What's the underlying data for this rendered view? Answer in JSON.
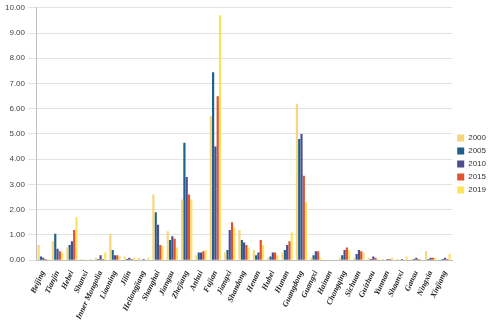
{
  "chart_data": {
    "type": "bar",
    "categories": [
      "Beijing",
      "Tianjin",
      "Hebei",
      "Shanxi",
      "Inner Mongolia",
      "Liaoning",
      "Jilin",
      "Heilongjiang",
      "Shanghai",
      "Jiangsu",
      "Zhejiang",
      "Anhui",
      "Fujian",
      "Jiangxi",
      "Shandong",
      "Henan",
      "Hubei",
      "Hunan",
      "Guangdong",
      "Guangxi",
      "Hainan",
      "Chongqing",
      "Sichuan",
      "Guizhou",
      "Yunnan",
      "Shaanxi",
      "Gansu",
      "Ningxia",
      "Xinjiang"
    ],
    "series": [
      {
        "name": "2000",
        "color": "#f5d67b",
        "values": [
          0.6,
          0.75,
          0.5,
          0.05,
          0.1,
          1.05,
          0.15,
          0.1,
          2.6,
          1.15,
          2.4,
          0.2,
          5.7,
          0.3,
          1.2,
          0.4,
          0.1,
          0.3,
          6.2,
          0.1,
          0.02,
          0.1,
          0.1,
          0.1,
          0.05,
          0.05,
          0.05,
          0.35,
          0.05
        ]
      },
      {
        "name": "2005",
        "color": "#1f5f8b",
        "values": [
          0.15,
          1.05,
          0.6,
          0.02,
          0.05,
          0.4,
          0.05,
          0.02,
          1.9,
          0.8,
          4.65,
          0.3,
          7.45,
          0.4,
          0.8,
          0.2,
          0.15,
          0.4,
          4.8,
          0.2,
          0.02,
          0.2,
          0.25,
          0.05,
          0.02,
          0.02,
          0.05,
          0.05,
          0.05
        ]
      },
      {
        "name": "2010",
        "color": "#4d4d8f",
        "values": [
          0.1,
          0.45,
          0.75,
          0.02,
          0.2,
          0.2,
          0.1,
          0.05,
          1.4,
          0.95,
          3.3,
          0.3,
          4.5,
          1.2,
          0.7,
          0.3,
          0.3,
          0.6,
          5.0,
          0.35,
          0.02,
          0.4,
          0.4,
          0.15,
          0.05,
          0.05,
          0.1,
          0.1,
          0.1
        ]
      },
      {
        "name": "2015",
        "color": "#e0532b",
        "values": [
          0.05,
          0.35,
          1.2,
          0.02,
          0.05,
          0.2,
          0.05,
          0.02,
          0.6,
          0.85,
          2.6,
          0.35,
          6.5,
          1.5,
          0.6,
          0.8,
          0.3,
          0.75,
          3.35,
          0.35,
          0.02,
          0.5,
          0.35,
          0.1,
          0.05,
          0.02,
          0.05,
          0.1,
          0.05
        ]
      },
      {
        "name": "2019",
        "color": "#fde25a",
        "values": [
          0.05,
          0.3,
          1.7,
          0.05,
          0.3,
          0.15,
          0.1,
          0.1,
          0.55,
          0.5,
          2.4,
          0.4,
          9.7,
          1.3,
          0.5,
          0.6,
          0.2,
          1.1,
          2.3,
          0.1,
          0.02,
          0.4,
          0.3,
          0.05,
          0.1,
          0.15,
          0.05,
          0.1,
          0.25
        ]
      }
    ],
    "ylim": [
      0,
      10
    ],
    "yticks": [
      {
        "value": 0,
        "label": "0.00"
      },
      {
        "value": 1,
        "label": "1.00"
      },
      {
        "value": 2,
        "label": "2.00"
      },
      {
        "value": 3,
        "label": "3.00"
      },
      {
        "value": 4,
        "label": "4.00"
      },
      {
        "value": 5,
        "label": "5.00"
      },
      {
        "value": 6,
        "label": "6.00"
      },
      {
        "value": 7,
        "label": "7.00"
      },
      {
        "value": 8,
        "label": "8.00"
      },
      {
        "value": 9,
        "label": "9.00"
      },
      {
        "value": 10,
        "label": "10.00"
      }
    ],
    "grid": true,
    "legend": "right"
  }
}
